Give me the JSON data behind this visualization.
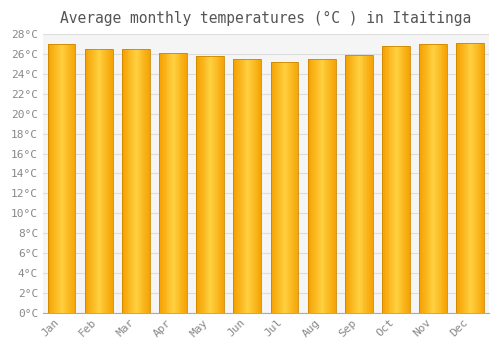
{
  "title": "Average monthly temperatures (°C ) in Itaitinga",
  "months": [
    "Jan",
    "Feb",
    "Mar",
    "Apr",
    "May",
    "Jun",
    "Jul",
    "Aug",
    "Sep",
    "Oct",
    "Nov",
    "Dec"
  ],
  "values": [
    27.0,
    26.5,
    26.5,
    26.1,
    25.8,
    25.5,
    25.2,
    25.5,
    25.9,
    26.8,
    27.0,
    27.1
  ],
  "bar_color_center": "#FFD040",
  "bar_color_edge": "#F5A000",
  "bar_border_color": "#CC8800",
  "ylim": [
    0,
    28
  ],
  "ytick_step": 2,
  "background_color": "#ffffff",
  "plot_bg_color": "#f5f5f5",
  "grid_color": "#dddddd",
  "title_fontsize": 10.5,
  "tick_fontsize": 8,
  "bar_width": 0.75
}
